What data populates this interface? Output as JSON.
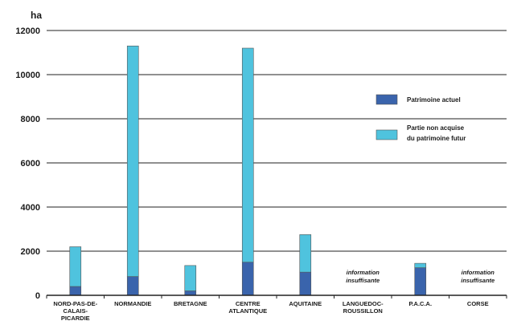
{
  "chart_data": {
    "type": "bar",
    "stacked": true,
    "yunit_label": "ha",
    "ylim": [
      0,
      12000
    ],
    "yticks": [
      0,
      2000,
      4000,
      6000,
      8000,
      10000,
      12000
    ],
    "ytick_labels": [
      "0",
      "2000",
      "4000",
      "6000",
      "8000",
      "10000",
      "12000"
    ],
    "grid": true,
    "legend_position": "right",
    "categories": [
      "NORD-PAS-DE-CALAIS-PICARDIE",
      "NORMANDIE",
      "BRETAGNE",
      "CENTRE ATLANTIQUE",
      "AQUITAINE",
      "LANGUEDOC-ROUSSILLON",
      "P.A.C.A.",
      "CORSE"
    ],
    "category_label_lines": [
      [
        "NORD-PAS-DE-",
        "CALAIS-",
        "PICARDIE"
      ],
      [
        "NORMANDIE"
      ],
      [
        "BRETAGNE"
      ],
      [
        "CENTRE",
        "ATLANTIQUE"
      ],
      [
        "AQUITAINE"
      ],
      [
        "LANGUEDOC-",
        "ROUSSILLON"
      ],
      [
        "P.A.C.A."
      ],
      [
        "CORSE"
      ]
    ],
    "series": [
      {
        "name": "Patrimoine actuel",
        "color": "#3a64ac",
        "values": [
          400,
          850,
          200,
          1500,
          1050,
          null,
          1250,
          null
        ]
      },
      {
        "name": "Partie non acquise du patrimoine futur",
        "color": "#4fc3de",
        "values": [
          1800,
          10450,
          1150,
          9700,
          1700,
          null,
          200,
          null
        ]
      }
    ],
    "legend": [
      {
        "lines": [
          "Patrimoine actuel"
        ],
        "color": "#3a64ac"
      },
      {
        "lines": [
          "Partie non acquise",
          "du patrimoine futur"
        ],
        "color": "#4fc3de"
      }
    ],
    "annotations": [
      {
        "category_index": 5,
        "lines": [
          "information",
          "insuffisante"
        ]
      },
      {
        "category_index": 7,
        "lines": [
          "information",
          "insuffisante"
        ]
      }
    ]
  }
}
